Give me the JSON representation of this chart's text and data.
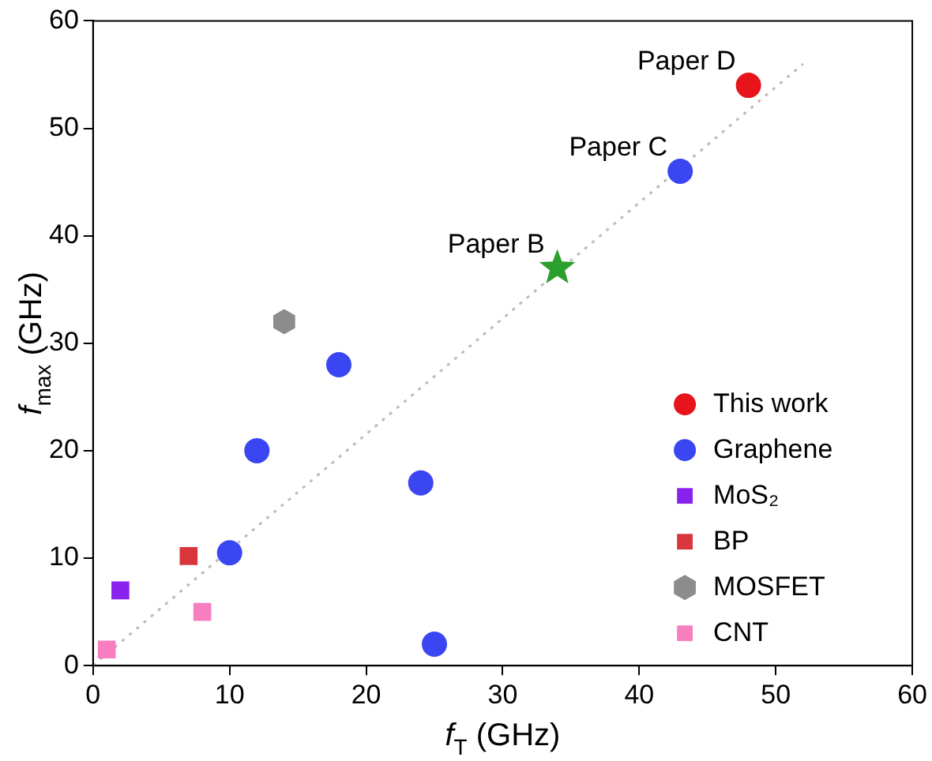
{
  "chart_data": {
    "type": "scatter",
    "xlabel": "f$_{T}$ (GHz)",
    "ylabel": "f$_{max}$ (GHz)",
    "xlim": [
      0,
      60
    ],
    "xticks": [
      0,
      10,
      20,
      30,
      40,
      50,
      60
    ],
    "ylim": [
      0,
      60
    ],
    "yticks": [
      0,
      10,
      20,
      30,
      40,
      50,
      60
    ],
    "grid": false,
    "legend": "bottom right",
    "series": [
      {
        "name": "This work",
        "color": "#e8141c",
        "marker": "circle",
        "x": [
          48
        ],
        "values": [
          54
        ]
      },
      {
        "name": "Graphene",
        "color": "#3a46f2",
        "marker": "circle",
        "x": [
          43,
          18,
          12,
          10,
          24,
          25
        ],
        "values": [
          46,
          28,
          20,
          10.5,
          17,
          2
        ]
      },
      {
        "name": "MoS₂",
        "color": "#8a22ee",
        "marker": "square",
        "x": [
          2
        ],
        "values": [
          7
        ]
      },
      {
        "name": "BP",
        "color": "#d8363c",
        "marker": "square",
        "x": [
          7
        ],
        "values": [
          10.2
        ]
      },
      {
        "name": "MOSFET",
        "color": "#8c8c8c",
        "x": [
          14
        ],
        "values": [
          32
        ]
      },
      {
        "name": "CNT",
        "color": "#f77fbf",
        "marker": "square",
        "x": [
          1,
          8
        ],
        "values": [
          1.5,
          5
        ]
      },
      {
        "color": "#2ca02c",
        "marker": "star",
        "x": [
          34
        ],
        "values": [
          37
        ]
      },
      {
        "type": "line",
        "color": "#bbbbbb",
        "line_style": "dotted",
        "marker": "none",
        "x": [
          0,
          52
        ],
        "values": [
          0,
          56
        ]
      }
    ],
    "annotations": [
      {
        "text": "Paper D",
        "x": 48,
        "y": 54
      },
      {
        "text": "Paper C",
        "x": 43,
        "y": 46
      },
      {
        "text": "Paper B",
        "x": 34,
        "y": 37
      }
    ]
  }
}
